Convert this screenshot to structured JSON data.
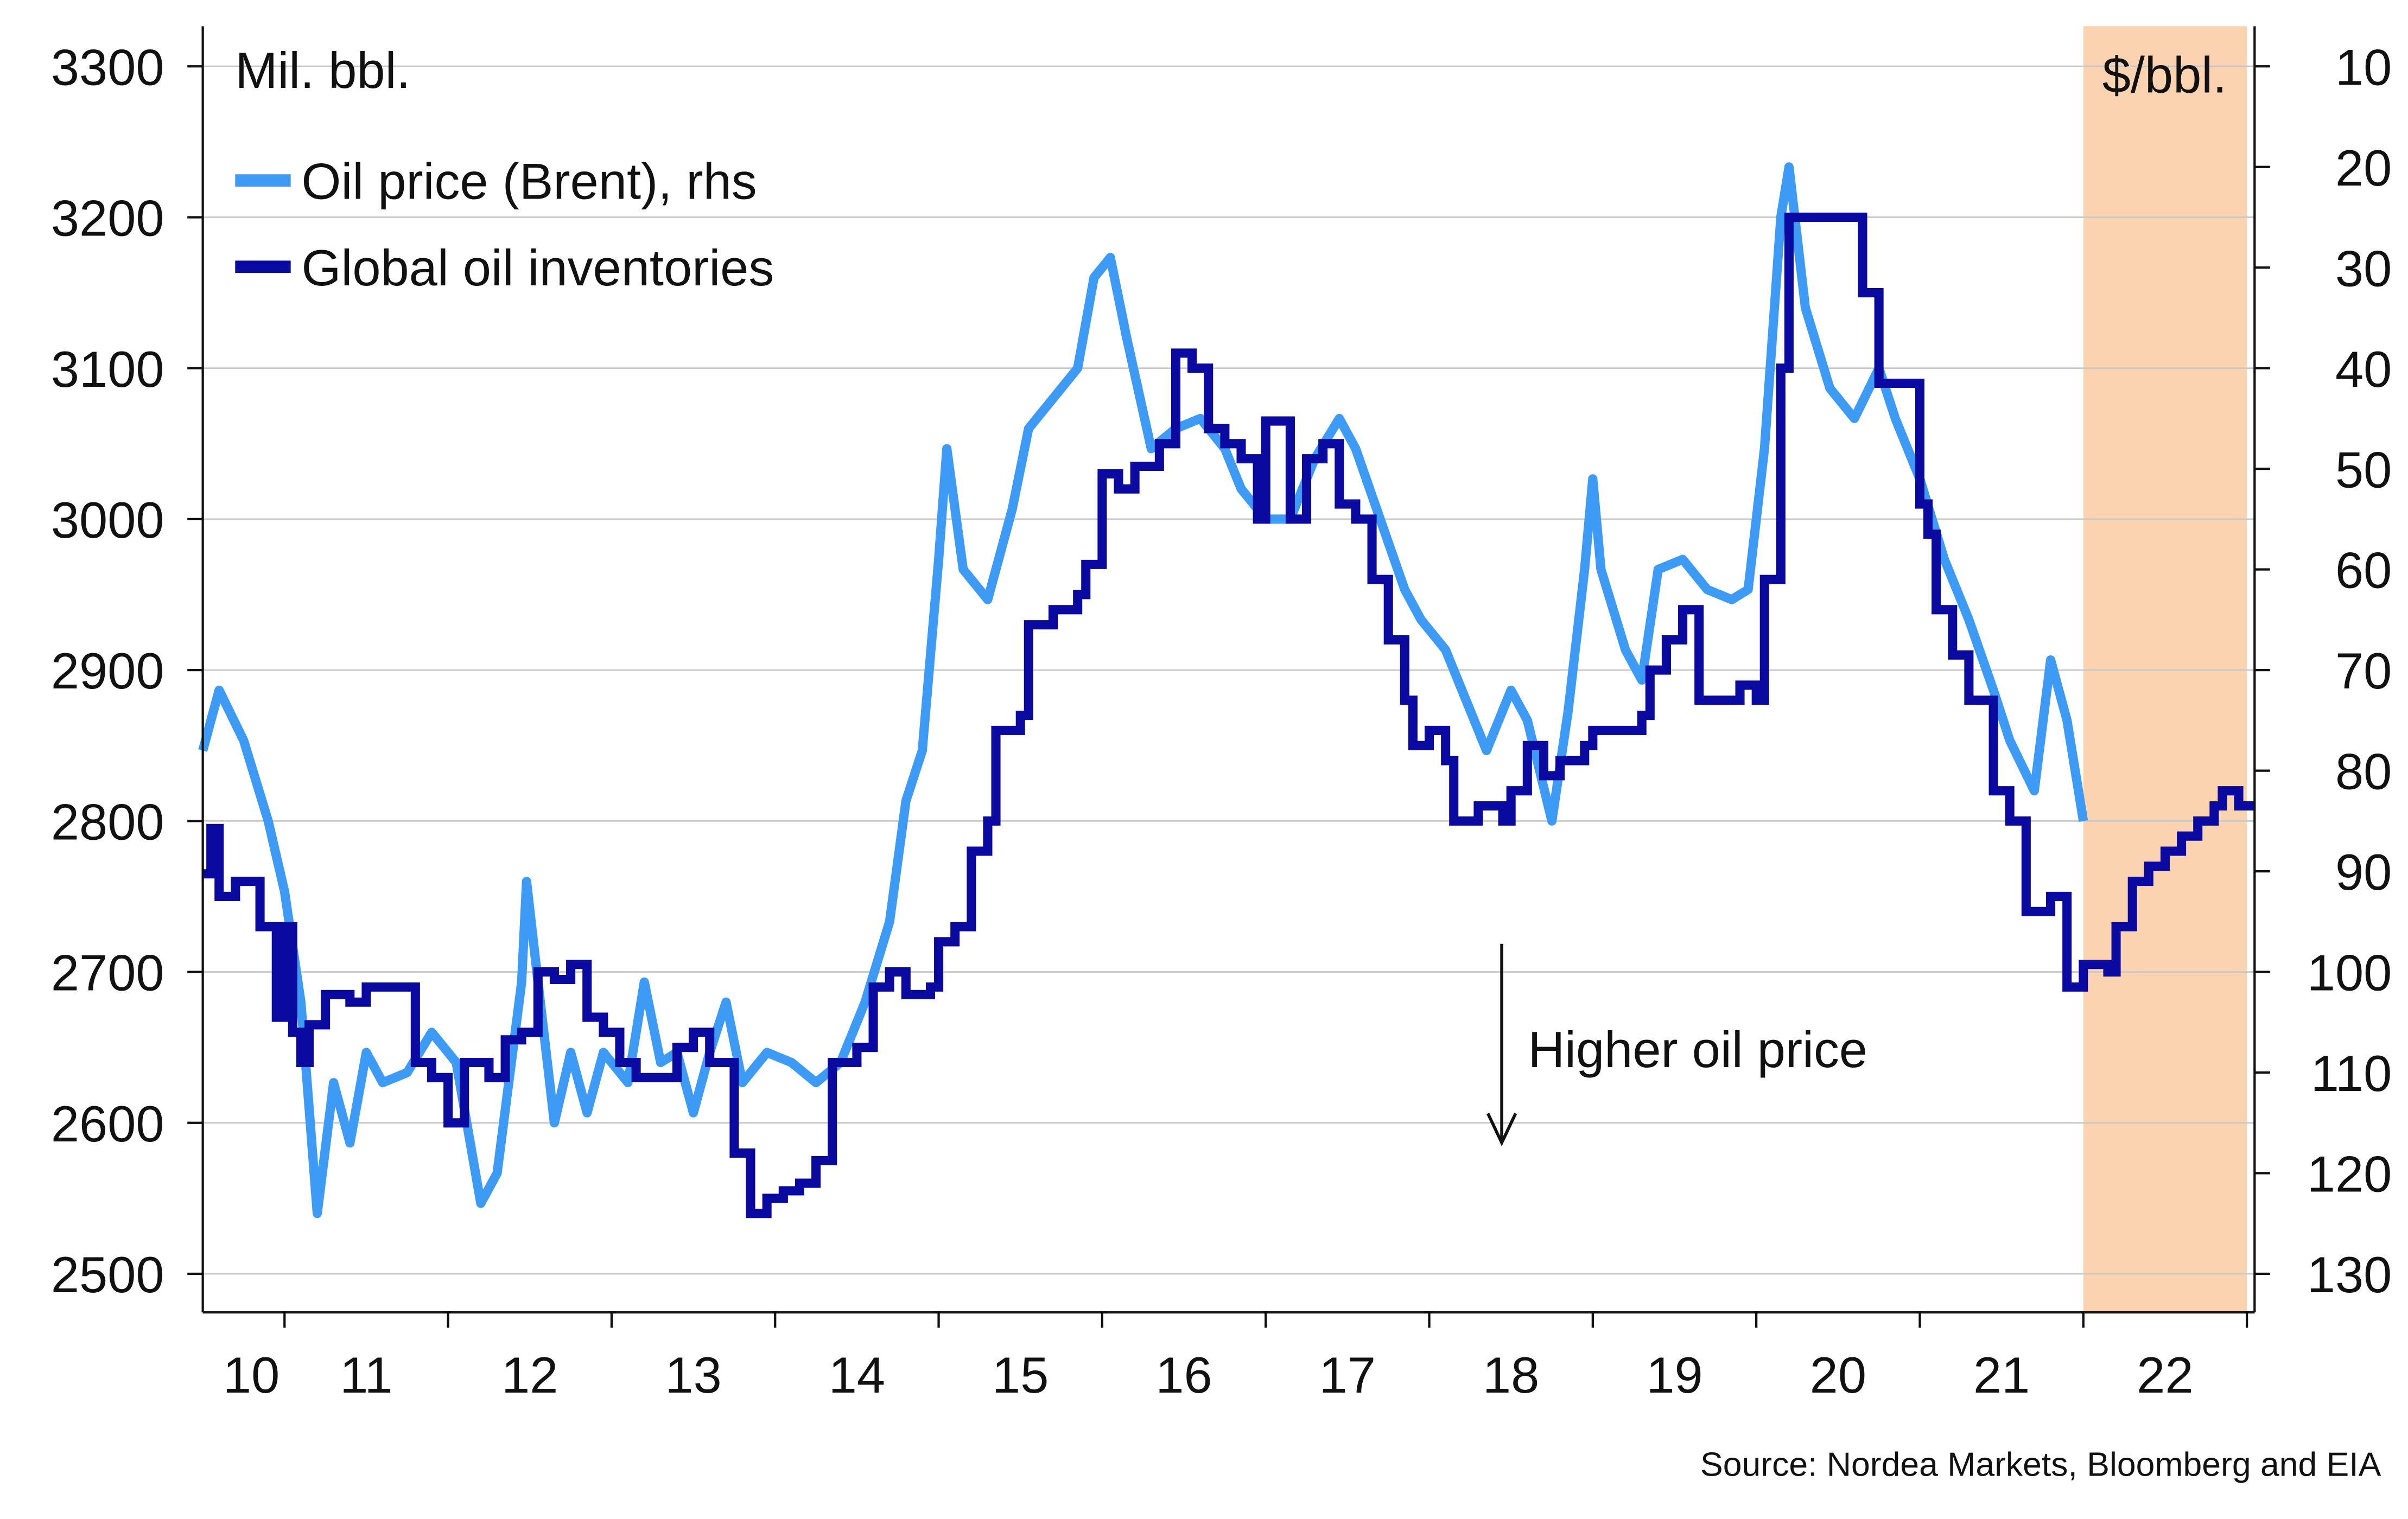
{
  "chart_data": {
    "type": "line",
    "left_axis_label": "Mil. bbl.",
    "right_axis_label": "$/bbl.",
    "source": "Source: Nordea Markets, Bloomberg and EIA",
    "annotation": "Higher oil price",
    "left_ylim": [
      2500,
      3300
    ],
    "left_yticks": [
      2500,
      2600,
      2700,
      2800,
      2900,
      3000,
      3100,
      3200,
      3300
    ],
    "right_ylim": [
      130,
      10
    ],
    "right_axis_inverted": true,
    "right_yticks": [
      10,
      20,
      30,
      40,
      50,
      60,
      70,
      80,
      90,
      100,
      110,
      120,
      130
    ],
    "x_tick_labels": [
      "10",
      "11",
      "12",
      "13",
      "14",
      "15",
      "16",
      "17",
      "18",
      "19",
      "20",
      "21",
      "22"
    ],
    "xlim": [
      2010.5,
      2023.05
    ],
    "shaded_forecast_period": [
      2022.0,
      2023.0
    ],
    "shade_color": "#fbd3b1",
    "grid": "horizontal",
    "legend_placement": "top-left",
    "series": [
      {
        "name": "Oil price (Brent), rhs",
        "axis": "right",
        "color": "#3d9bf5",
        "x": [
          2010.5,
          2010.6,
          2010.75,
          2010.9,
          2011.0,
          2011.1,
          2011.2,
          2011.3,
          2011.4,
          2011.5,
          2011.6,
          2011.75,
          2011.9,
          2012.05,
          2012.2,
          2012.3,
          2012.45,
          2012.48,
          2012.55,
          2012.65,
          2012.75,
          2012.85,
          2012.95,
          2013.1,
          2013.2,
          2013.3,
          2013.4,
          2013.5,
          2013.6,
          2013.7,
          2013.8,
          2013.95,
          2014.1,
          2014.25,
          2014.4,
          2014.55,
          2014.7,
          2014.8,
          2014.9,
          2015.0,
          2015.05,
          2015.15,
          2015.3,
          2015.45,
          2015.55,
          2015.7,
          2015.85,
          2015.95,
          2016.05,
          2016.15,
          2016.3,
          2016.45,
          2016.6,
          2016.75,
          2016.85,
          2017.0,
          2017.15,
          2017.3,
          2017.45,
          2017.55,
          2017.7,
          2017.85,
          2017.95,
          2018.1,
          2018.25,
          2018.35,
          2018.5,
          2018.6,
          2018.75,
          2018.85,
          2018.95,
          2019.0,
          2019.05,
          2019.2,
          2019.3,
          2019.4,
          2019.55,
          2019.7,
          2019.85,
          2019.95,
          2020.05,
          2020.15,
          2020.2,
          2020.3,
          2020.45,
          2020.6,
          2020.75,
          2020.85,
          2021.0,
          2021.15,
          2021.3,
          2021.45,
          2021.55,
          2021.7,
          2021.8,
          2021.9,
          2022.0
        ],
        "values": [
          78,
          72,
          77,
          85,
          92,
          103,
          124,
          111,
          117,
          108,
          111,
          110,
          106,
          109,
          123,
          120,
          101,
          91,
          101,
          115,
          108,
          114,
          108,
          111,
          101,
          109,
          108,
          114,
          108,
          103,
          111,
          108,
          109,
          111,
          109,
          103,
          95,
          83,
          78,
          59,
          48,
          60,
          63,
          54,
          46,
          43,
          40,
          31,
          29,
          37,
          48,
          46,
          45,
          48,
          52,
          55,
          55,
          49,
          45,
          48,
          55,
          62,
          65,
          68,
          74,
          78,
          72,
          75,
          85,
          74,
          60,
          51,
          60,
          68,
          71,
          60,
          59,
          62,
          63,
          62,
          48,
          25,
          20,
          34,
          42,
          45,
          40,
          45,
          51,
          59,
          65,
          72,
          77,
          82,
          69,
          75,
          85
        ]
      },
      {
        "name": "Global oil inventories",
        "axis": "left",
        "color": "#0a0aa0",
        "x": [
          2010.5,
          2010.55,
          2010.6,
          2010.7,
          2010.85,
          2010.95,
          2011.0,
          2011.05,
          2011.1,
          2011.15,
          2011.25,
          2011.4,
          2011.5,
          2011.7,
          2011.8,
          2011.9,
          2012.0,
          2012.1,
          2012.25,
          2012.35,
          2012.45,
          2012.55,
          2012.65,
          2012.75,
          2012.85,
          2012.95,
          2013.05,
          2013.15,
          2013.3,
          2013.4,
          2013.5,
          2013.6,
          2013.75,
          2013.85,
          2013.95,
          2014.05,
          2014.15,
          2014.25,
          2014.35,
          2014.5,
          2014.6,
          2014.7,
          2014.8,
          2014.95,
          2015.0,
          2015.1,
          2015.2,
          2015.3,
          2015.35,
          2015.5,
          2015.55,
          2015.7,
          2015.85,
          2015.9,
          2016.0,
          2016.1,
          2016.2,
          2016.35,
          2016.45,
          2016.55,
          2016.65,
          2016.75,
          2016.85,
          2016.95,
          2017.0,
          2017.15,
          2017.25,
          2017.35,
          2017.45,
          2017.55,
          2017.65,
          2017.75,
          2017.85,
          2017.9,
          2018.0,
          2018.1,
          2018.15,
          2018.3,
          2018.45,
          2018.5,
          2018.6,
          2018.7,
          2018.8,
          2018.95,
          2019.0,
          2019.2,
          2019.3,
          2019.35,
          2019.45,
          2019.55,
          2019.65,
          2019.8,
          2019.9,
          2020.0,
          2020.05,
          2020.15,
          2020.2,
          2020.4,
          2020.55,
          2020.65,
          2020.75,
          2020.9,
          2021.0,
          2021.05,
          2021.1,
          2021.2,
          2021.3,
          2021.45,
          2021.55,
          2021.65,
          2021.8,
          2021.9,
          2022.0,
          2022.15,
          2022.2,
          2022.3,
          2022.4,
          2022.5,
          2022.6,
          2022.7,
          2022.8,
          2022.85,
          2022.95,
          2023.05
        ],
        "values": [
          2765,
          2795,
          2750,
          2760,
          2730,
          2670,
          2730,
          2660,
          2640,
          2665,
          2685,
          2680,
          2690,
          2690,
          2640,
          2630,
          2600,
          2640,
          2630,
          2655,
          2660,
          2700,
          2695,
          2705,
          2670,
          2660,
          2640,
          2630,
          2630,
          2650,
          2660,
          2640,
          2580,
          2540,
          2550,
          2555,
          2560,
          2575,
          2640,
          2650,
          2690,
          2700,
          2685,
          2690,
          2720,
          2730,
          2780,
          2800,
          2860,
          2870,
          2930,
          2940,
          2950,
          2970,
          3030,
          3020,
          3035,
          3050,
          3110,
          3100,
          3060,
          3050,
          3040,
          3000,
          3065,
          3000,
          3040,
          3050,
          3010,
          3000,
          2960,
          2920,
          2880,
          2850,
          2860,
          2840,
          2800,
          2810,
          2800,
          2820,
          2850,
          2830,
          2840,
          2850,
          2860,
          2860,
          2870,
          2900,
          2920,
          2940,
          2880,
          2880,
          2890,
          2880,
          2960,
          3100,
          3200,
          3200,
          3200,
          3150,
          3090,
          3090,
          3010,
          2990,
          2940,
          2910,
          2880,
          2820,
          2800,
          2740,
          2750,
          2690,
          2705,
          2700,
          2730,
          2760,
          2770,
          2780,
          2790,
          2800,
          2810,
          2820,
          2810,
          2810
        ]
      }
    ]
  }
}
